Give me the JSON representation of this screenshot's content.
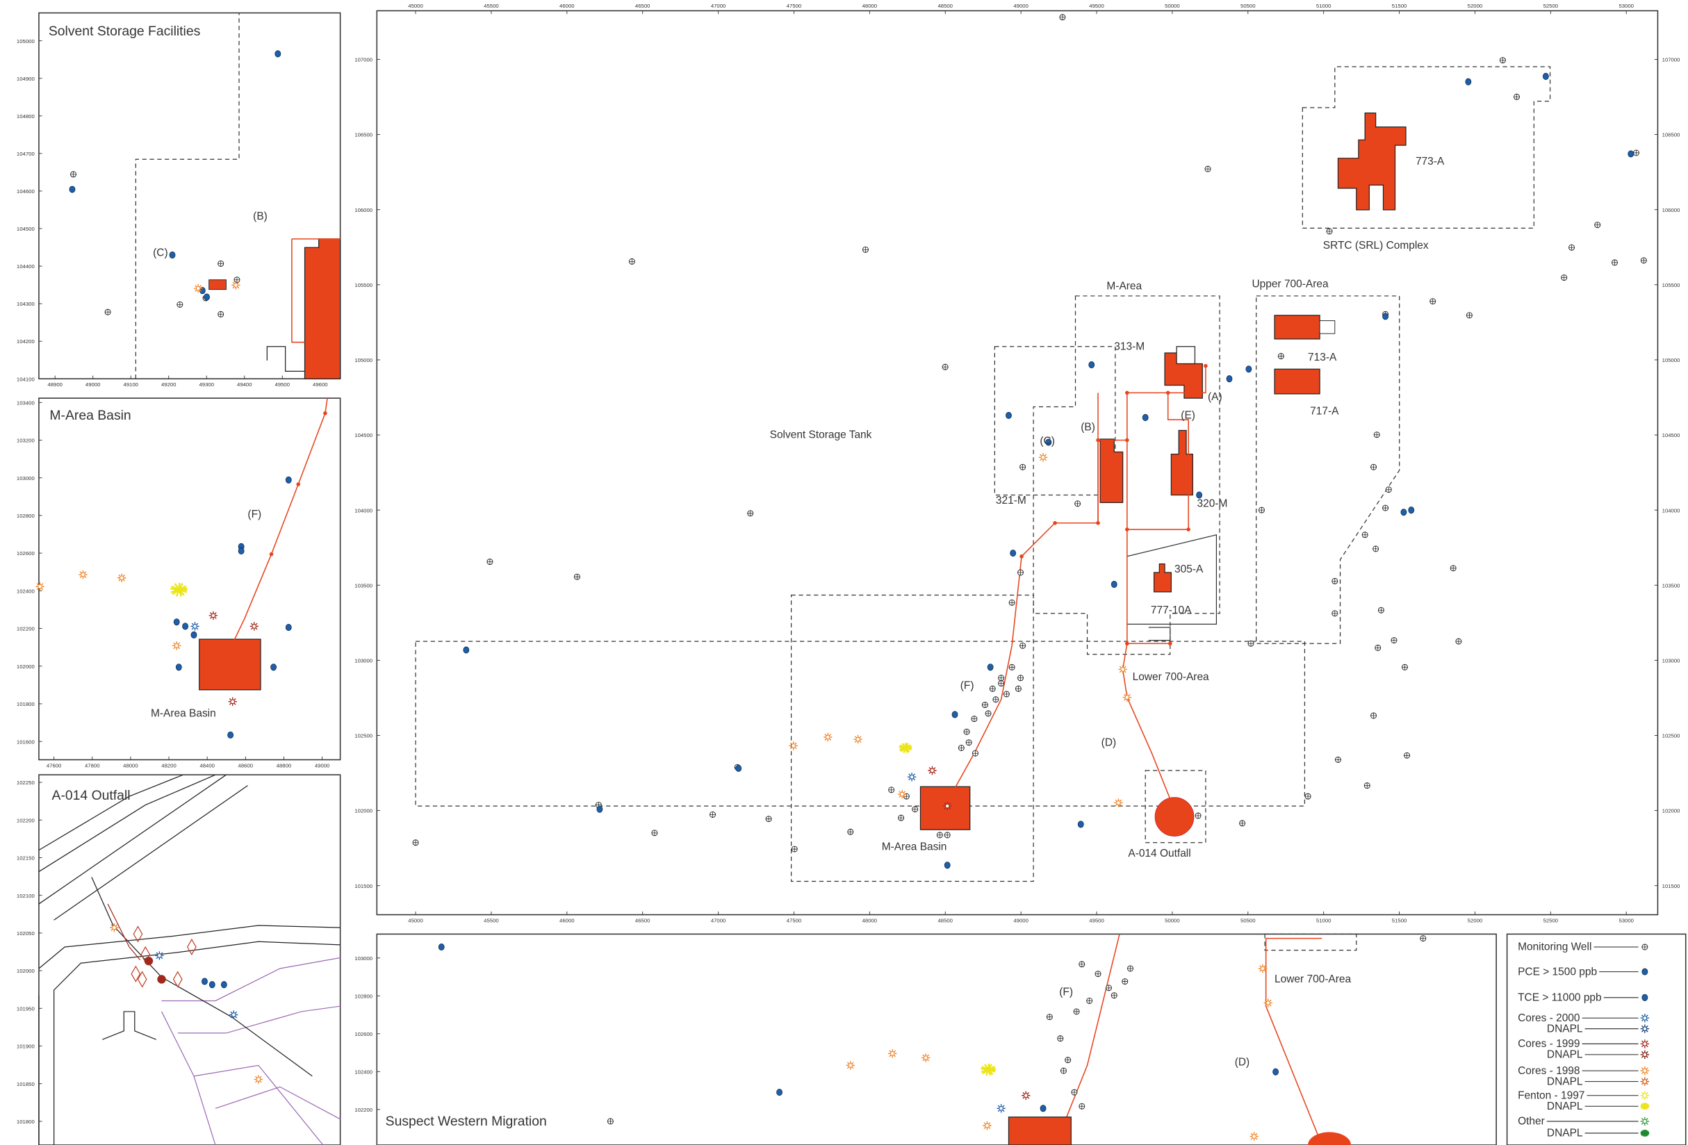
{
  "main_map": {
    "labels": [
      "Solvent Storage Tank",
      "M-Area",
      "Upper 700-Area",
      "313-M",
      "713-A",
      "717-A",
      "(A)",
      "(B)",
      "(C)",
      "(E)",
      "321-M",
      "320-M",
      "305-A",
      "777-10A",
      "Lower 700-Area",
      "(D)",
      "(F)",
      "M-Area Basin",
      "A-014 Outfall",
      "773-A",
      "SRTC (SRL) Complex"
    ],
    "x_ticks": [
      45000,
      45500,
      46000,
      46500,
      47000,
      47500,
      48000,
      48500,
      49000,
      49500,
      50000,
      50500,
      51000,
      51500,
      52000,
      52500,
      53000
    ],
    "y_ticks": [
      101500,
      102000,
      102500,
      103000,
      103500,
      104000,
      104500,
      105000,
      105500,
      106000,
      106500,
      107000
    ]
  },
  "insets": [
    {
      "title": "Solvent Storage Facilities",
      "labels": [
        "(B)",
        "(C)"
      ],
      "x_ticks": [
        48900,
        49000,
        49100,
        49200,
        49300,
        49400,
        49500,
        49600
      ],
      "y_ticks": [
        104100,
        104200,
        104300,
        104400,
        104500,
        104600,
        104700,
        104800,
        104900,
        105000
      ]
    },
    {
      "title": "M-Area Basin",
      "labels": [
        "(F)",
        "M-Area Basin"
      ],
      "x_ticks": [
        47600,
        47800,
        48000,
        48200,
        48400,
        48600,
        48800,
        49000
      ],
      "y_ticks": [
        101600,
        101800,
        102000,
        102200,
        102400,
        102600,
        102800,
        103000,
        103200,
        103400
      ]
    },
    {
      "title": "A-014 Outfall",
      "labels": [],
      "y_ticks": [
        101800,
        101850,
        101900,
        101950,
        102000,
        102050,
        102100,
        102150,
        102200,
        102250
      ]
    }
  ],
  "bottom_panel": {
    "title": "Suspect Western Migration",
    "labels": [
      "(F)",
      "(D)",
      "Lower 700-Area"
    ],
    "y_ticks": [
      102200,
      102400,
      102600,
      102800,
      103000
    ]
  },
  "legend": [
    "Monitoring Well",
    "PCE > 1500 ppb",
    "TCE > 11000 ppb",
    "Cores - 2000",
    "DNAPL",
    "Cores - 1999",
    "DNAPL",
    "Cores - 1998",
    "DNAPL",
    "Fenton - 1997",
    "DNAPL",
    "Other",
    "DNAPL"
  ]
}
